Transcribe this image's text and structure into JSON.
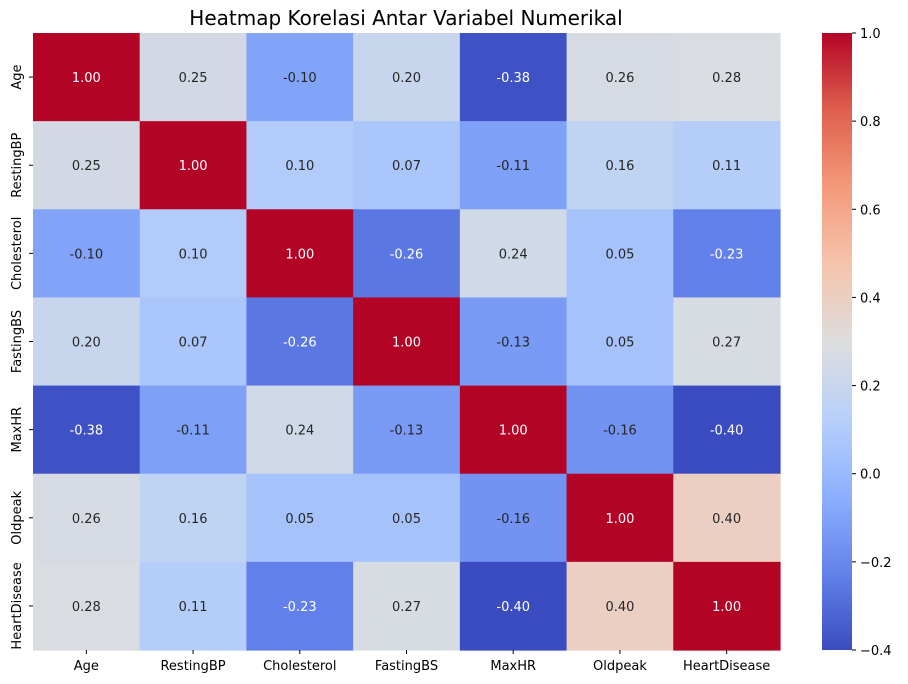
{
  "chart_data": {
    "type": "heatmap",
    "title": "Heatmap Korelasi Antar Variabel Numerikal",
    "xlabel": "",
    "ylabel": "",
    "labels": [
      "Age",
      "RestingBP",
      "Cholesterol",
      "FastingBS",
      "MaxHR",
      "Oldpeak",
      "HeartDisease"
    ],
    "matrix": [
      [
        1.0,
        0.25,
        -0.1,
        0.2,
        -0.38,
        0.26,
        0.28
      ],
      [
        0.25,
        1.0,
        0.1,
        0.07,
        -0.11,
        0.16,
        0.11
      ],
      [
        -0.1,
        0.1,
        1.0,
        -0.26,
        0.24,
        0.05,
        -0.23
      ],
      [
        0.2,
        0.07,
        -0.26,
        1.0,
        -0.13,
        0.05,
        0.27
      ],
      [
        -0.38,
        -0.11,
        0.24,
        -0.13,
        1.0,
        -0.16,
        -0.4
      ],
      [
        0.26,
        0.16,
        0.05,
        0.05,
        -0.16,
        1.0,
        0.4
      ],
      [
        0.28,
        0.11,
        -0.23,
        0.27,
        -0.4,
        0.4,
        1.0
      ]
    ],
    "annotations_format": "2 decimals",
    "colormap": "coolwarm",
    "colorbar": {
      "range": [
        -0.4,
        1.0
      ],
      "ticks": [
        -0.4,
        -0.2,
        0.0,
        0.2,
        0.4,
        0.6,
        0.8,
        1.0
      ],
      "tick_labels": [
        "−0.4",
        "−0.2",
        "0.0",
        "0.2",
        "0.4",
        "0.6",
        "0.8",
        "1.0"
      ]
    },
    "colors": {
      "low": "#3b4cc0",
      "mid": "#dddddd",
      "high": "#b40426"
    }
  }
}
